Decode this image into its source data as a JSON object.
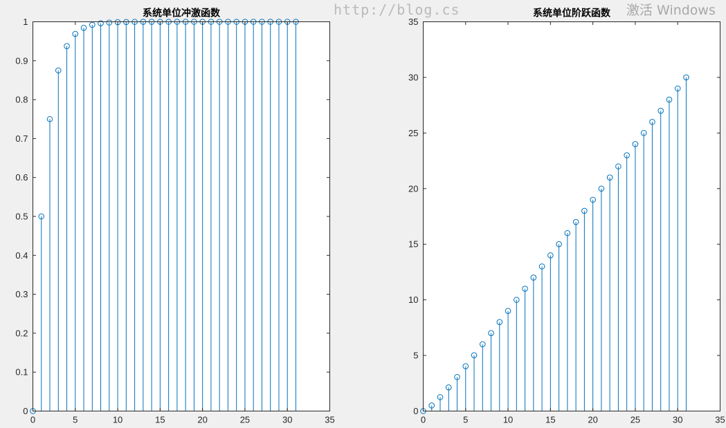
{
  "chart_data": [
    {
      "type": "stem",
      "title": "系统单位冲激函数",
      "xlabel": "",
      "ylabel": "",
      "xlim": [
        0,
        35
      ],
      "ylim": [
        0,
        1
      ],
      "xticks": [
        "0",
        "5",
        "10",
        "15",
        "20",
        "25",
        "30",
        "35"
      ],
      "yticks": [
        "0",
        "0.1",
        "0.2",
        "0.3",
        "0.4",
        "0.5",
        "0.6",
        "0.7",
        "0.8",
        "0.9",
        "1"
      ],
      "grid": false,
      "color": "#0072BD",
      "x": [
        0,
        1,
        2,
        3,
        4,
        5,
        6,
        7,
        8,
        9,
        10,
        11,
        12,
        13,
        14,
        15,
        16,
        17,
        18,
        19,
        20,
        21,
        22,
        23,
        24,
        25,
        26,
        27,
        28,
        29,
        30,
        31
      ],
      "values": [
        0,
        0.5,
        0.75,
        0.875,
        0.9375,
        0.9688,
        0.9844,
        0.9922,
        0.9961,
        0.998,
        0.999,
        0.9995,
        0.9998,
        0.9999,
        0.9999,
        1,
        1,
        1,
        1,
        1,
        1,
        1,
        1,
        1,
        1,
        1,
        1,
        1,
        1,
        1,
        1,
        1
      ]
    },
    {
      "type": "stem",
      "title": "系统单位阶跃函数",
      "xlabel": "",
      "ylabel": "",
      "xlim": [
        0,
        35
      ],
      "ylim": [
        0,
        35
      ],
      "xticks": [
        "0",
        "5",
        "10",
        "15",
        "20",
        "25",
        "30",
        "35"
      ],
      "yticks": [
        "0",
        "5",
        "10",
        "15",
        "20",
        "25",
        "30",
        "35"
      ],
      "grid": false,
      "color": "#0072BD",
      "x": [
        0,
        1,
        2,
        3,
        4,
        5,
        6,
        7,
        8,
        9,
        10,
        11,
        12,
        13,
        14,
        15,
        16,
        17,
        18,
        19,
        20,
        21,
        22,
        23,
        24,
        25,
        26,
        27,
        28,
        29,
        30,
        31
      ],
      "values": [
        0,
        0.5,
        1.25,
        2.125,
        3.0625,
        4.0313,
        5.0156,
        6.0078,
        7.0039,
        8.002,
        9.001,
        10.0005,
        11.0002,
        12.0001,
        13.0001,
        14,
        15,
        16,
        17,
        18,
        19,
        20,
        21,
        22,
        23,
        24,
        25,
        26,
        27,
        28,
        29,
        30
      ]
    }
  ],
  "watermark": {
    "url": "http://blog.cs",
    "windows": "激活 Windows"
  }
}
